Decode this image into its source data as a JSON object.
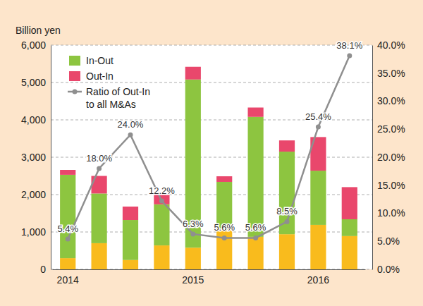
{
  "chart_data": {
    "type": "bar",
    "stacked": true,
    "grid": true,
    "legend": "top-left",
    "y_label": "Billion yen",
    "categories": [
      "2014",
      null,
      null,
      null,
      "2015",
      null,
      null,
      null,
      "2016",
      null
    ],
    "series": [
      {
        "name": null,
        "color": "#f9bb1d",
        "values": [
          300,
          700,
          250,
          640,
          580,
          1070,
          870,
          940,
          1190,
          890
        ]
      },
      {
        "name": "In-Out",
        "color": "#8dc540",
        "values": [
          2230,
          1330,
          1070,
          1100,
          4500,
          1270,
          3210,
          2210,
          1450,
          450
        ]
      },
      {
        "name": "Out-In",
        "color": "#e9476c",
        "values": [
          130,
          470,
          360,
          280,
          340,
          150,
          250,
          300,
          900,
          860
        ]
      },
      {
        "name": "Ratio of Out-In\nto all M&As",
        "type": "line",
        "axis": "y2",
        "color": "#8f8f8f",
        "marker": "circle",
        "data_labels": true,
        "values": [
          5.4,
          18.0,
          24.0,
          12.2,
          6.3,
          5.6,
          5.6,
          8.5,
          25.4,
          38.1
        ],
        "value_labels": [
          "5.4%",
          "18.0%",
          "24.0%",
          "12.2%",
          "6.3%",
          "5.6%",
          "5.6%",
          "8.5%",
          "25.4%",
          "38.1%"
        ]
      }
    ],
    "ylim": [
      0,
      6000
    ],
    "yticks": [
      0,
      {
        "value": 1000,
        "label": "1,000"
      },
      {
        "value": 2000,
        "label": "2,000"
      },
      {
        "value": 3000,
        "label": "3,000"
      },
      {
        "value": 4000,
        "label": "4,000"
      },
      {
        "value": 5000,
        "label": "5,000"
      },
      {
        "value": 6000,
        "label": "6,000"
      }
    ],
    "y2lim": [
      0,
      40
    ],
    "y2ticks": [
      {
        "value": 0,
        "label": "0.0%"
      },
      {
        "value": 5,
        "label": "5.0%"
      },
      {
        "value": 10,
        "label": "10.0%"
      },
      {
        "value": 15,
        "label": "15.0%"
      },
      {
        "value": 20,
        "label": "20.0%"
      },
      {
        "value": 25,
        "label": "25.0%"
      },
      {
        "value": 30,
        "label": "30.0%"
      },
      {
        "value": 35,
        "label": "35.0%"
      },
      {
        "value": 40,
        "label": "40.0%"
      }
    ]
  }
}
